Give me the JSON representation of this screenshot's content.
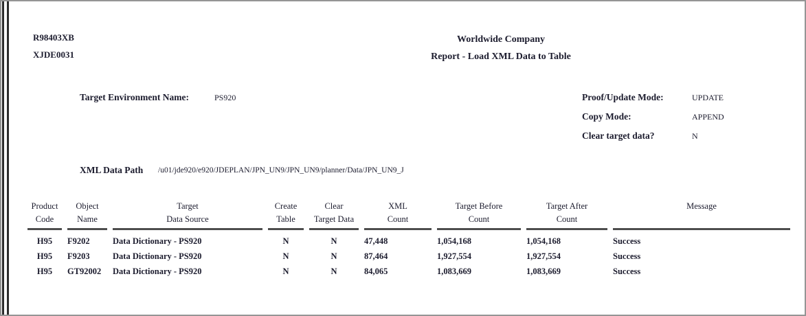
{
  "report": {
    "report_id": "R98403XB",
    "version_id": "XJDE0031",
    "company": "Worldwide Company",
    "title": "Report - Load XML Data to Table"
  },
  "params": {
    "target_env_label": "Target Environment Name:",
    "target_env_value": "PS920",
    "proof_update_label": "Proof/Update Mode:",
    "proof_update_value": "UPDATE",
    "copy_mode_label": "Copy Mode:",
    "copy_mode_value": "APPEND",
    "clear_target_label": "Clear target data?",
    "clear_target_value": "N",
    "xml_path_label": "XML Data Path",
    "xml_path_value": "/u01/jde920/e920/JDEPLAN/JPN_UN9/JPN_UN9/planner/Data/JPN_UN9_J"
  },
  "table": {
    "columns": [
      {
        "line1": "Product",
        "line2": "Code"
      },
      {
        "line1": "Object",
        "line2": "Name"
      },
      {
        "line1": "Target",
        "line2": "Data Source"
      },
      {
        "line1": "Create",
        "line2": "Table"
      },
      {
        "line1": "Clear",
        "line2": "Target Data"
      },
      {
        "line1": "XML",
        "line2": "Count"
      },
      {
        "line1": "Target Before",
        "line2": "Count"
      },
      {
        "line1": "Target After",
        "line2": "Count"
      },
      {
        "line1": "Message",
        "line2": ""
      }
    ],
    "rows": [
      [
        "H95",
        "F9202",
        "Data Dictionary - PS920",
        "N",
        "N",
        "47,448",
        "1,054,168",
        "1,054,168",
        "Success"
      ],
      [
        "H95",
        "F9203",
        "Data Dictionary - PS920",
        "N",
        "N",
        "87,464",
        "1,927,554",
        "1,927,554",
        "Success"
      ],
      [
        "H95",
        "GT92002",
        "Data Dictionary - PS920",
        "N",
        "N",
        "84,065",
        "1,083,669",
        "1,083,669",
        "Success"
      ]
    ]
  },
  "colors": {
    "text": "#1c1c2e",
    "rule": "#4d4d4d",
    "frame": "#949494"
  }
}
